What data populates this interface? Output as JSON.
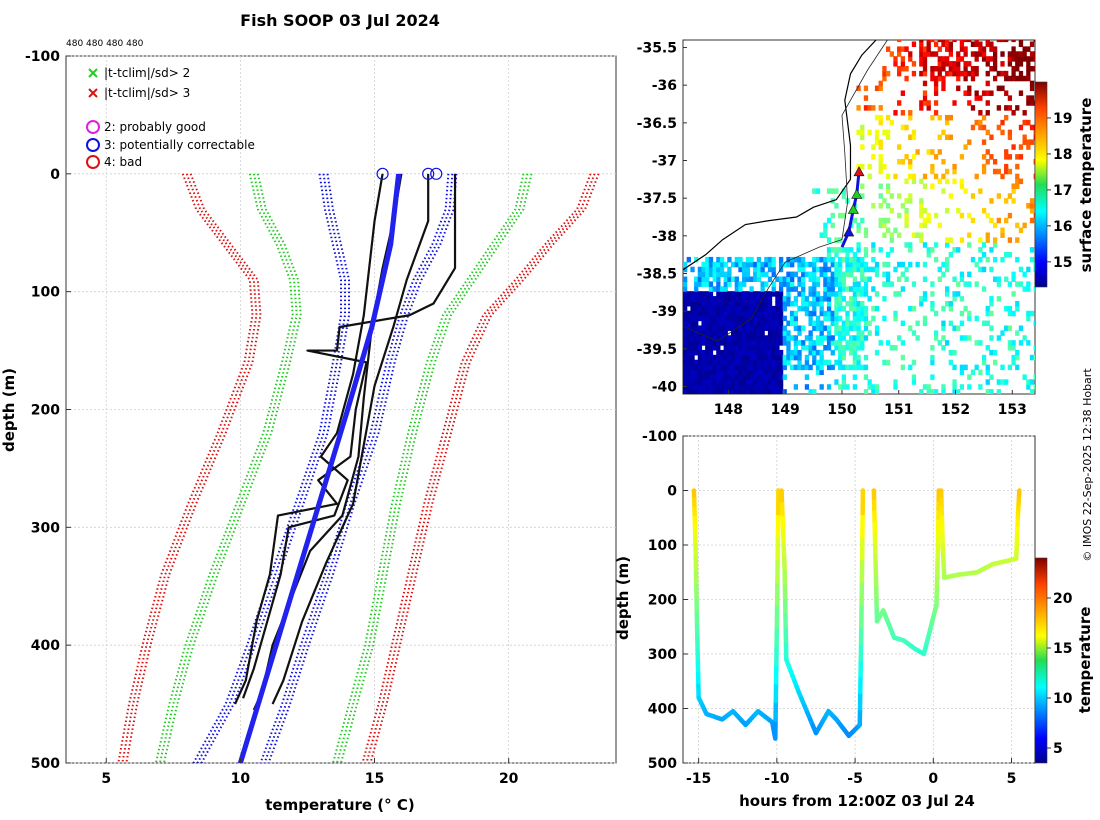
{
  "chart_data": [
    {
      "type": "line",
      "title": "Fish SOOP 03 Jul 2024",
      "annotation": "480 480 480 480",
      "xlabel": "temperature (° C)",
      "ylabel": "depth (m)",
      "xlim": [
        3.5,
        24
      ],
      "ylim": [
        -100,
        500
      ],
      "xticks": [
        "5",
        "10",
        "15",
        "20"
      ],
      "yticks": [
        "-100",
        "0",
        "100",
        "200",
        "300",
        "400",
        "500"
      ],
      "legend": [
        {
          "marker": "x",
          "color": "#22cc22",
          "label": "|t-tclim|/sd> 2"
        },
        {
          "marker": "x",
          "color": "#dd1111",
          "label": "|t-tclim|/sd> 3"
        },
        {
          "marker": "o",
          "color": "#dd22dd",
          "label": "2: probably good"
        },
        {
          "marker": "o",
          "color": "#1111dd",
          "label": "3: potentially correctable"
        },
        {
          "marker": "o",
          "color": "#dd1111",
          "label": "4: bad"
        }
      ],
      "series": [
        {
          "name": "clim -3sd",
          "color": "#dd1111",
          "style": "dotted",
          "points": [
            [
              8.0,
              0
            ],
            [
              8.5,
              30
            ],
            [
              9.5,
              60
            ],
            [
              10.5,
              90
            ],
            [
              10.6,
              120
            ],
            [
              10.3,
              160
            ],
            [
              9.3,
              220
            ],
            [
              8.2,
              280
            ],
            [
              7.2,
              340
            ],
            [
              6.5,
              400
            ],
            [
              6.0,
              450
            ],
            [
              5.6,
              500
            ]
          ]
        },
        {
          "name": "clim -2sd",
          "color": "#22cc22",
          "style": "dotted",
          "points": [
            [
              10.5,
              0
            ],
            [
              10.8,
              30
            ],
            [
              11.5,
              60
            ],
            [
              12.0,
              90
            ],
            [
              12.1,
              120
            ],
            [
              11.7,
              160
            ],
            [
              11.0,
              220
            ],
            [
              10.0,
              280
            ],
            [
              9.0,
              340
            ],
            [
              8.1,
              400
            ],
            [
              7.5,
              450
            ],
            [
              7.0,
              500
            ]
          ]
        },
        {
          "name": "clim -1sd",
          "color": "#1111dd",
          "style": "dotted",
          "points": [
            [
              13.1,
              0
            ],
            [
              13.3,
              30
            ],
            [
              13.6,
              60
            ],
            [
              13.9,
              90
            ],
            [
              13.9,
              120
            ],
            [
              13.6,
              160
            ],
            [
              13.1,
              220
            ],
            [
              12.2,
              280
            ],
            [
              11.3,
              340
            ],
            [
              10.4,
              400
            ],
            [
              9.6,
              450
            ],
            [
              8.4,
              500
            ]
          ]
        },
        {
          "name": "clim +1sd",
          "color": "#1111dd",
          "style": "dotted",
          "points": [
            [
              17.9,
              0
            ],
            [
              17.8,
              30
            ],
            [
              17.3,
              60
            ],
            [
              16.6,
              90
            ],
            [
              16.1,
              120
            ],
            [
              15.6,
              160
            ],
            [
              15.0,
              220
            ],
            [
              14.1,
              280
            ],
            [
              13.3,
              340
            ],
            [
              12.4,
              400
            ],
            [
              11.7,
              450
            ],
            [
              10.9,
              500
            ]
          ]
        },
        {
          "name": "clim +2sd",
          "color": "#22cc22",
          "style": "dotted",
          "points": [
            [
              20.7,
              0
            ],
            [
              20.4,
              30
            ],
            [
              19.5,
              60
            ],
            [
              18.6,
              90
            ],
            [
              17.7,
              120
            ],
            [
              17.1,
              160
            ],
            [
              16.4,
              220
            ],
            [
              15.8,
              280
            ],
            [
              15.3,
              340
            ],
            [
              14.8,
              400
            ],
            [
              14.2,
              450
            ],
            [
              13.6,
              500
            ]
          ]
        },
        {
          "name": "clim +3sd",
          "color": "#dd1111",
          "style": "dotted",
          "points": [
            [
              23.2,
              0
            ],
            [
              22.7,
              30
            ],
            [
              21.5,
              60
            ],
            [
              20.4,
              90
            ],
            [
              19.2,
              120
            ],
            [
              18.4,
              160
            ],
            [
              17.7,
              220
            ],
            [
              17.0,
              280
            ],
            [
              16.4,
              340
            ],
            [
              15.8,
              400
            ],
            [
              15.3,
              450
            ],
            [
              14.7,
              500
            ]
          ]
        },
        {
          "name": "XBT profile 1",
          "color": "#111111",
          "style": "solid",
          "points": [
            [
              17.0,
              0
            ],
            [
              17.0,
              40
            ],
            [
              16.2,
              90
            ],
            [
              15.7,
              130
            ],
            [
              15.0,
              180
            ],
            [
              14.6,
              230
            ],
            [
              14.2,
              280
            ],
            [
              13.2,
              330
            ],
            [
              12.3,
              380
            ],
            [
              11.6,
              430
            ],
            [
              11.2,
              450
            ]
          ]
        },
        {
          "name": "XBT profile 2",
          "color": "#111111",
          "style": "solid",
          "points": [
            [
              18.0,
              0
            ],
            [
              18.0,
              80
            ],
            [
              17.6,
              95
            ],
            [
              17.2,
              110
            ],
            [
              16.3,
              120
            ],
            [
              13.7,
              130
            ],
            [
              13.6,
              150
            ],
            [
              12.5,
              150
            ],
            [
              14.7,
              160
            ],
            [
              14.3,
              200
            ],
            [
              14.1,
              240
            ],
            [
              12.9,
              260
            ],
            [
              13.6,
              280
            ],
            [
              11.4,
              290
            ],
            [
              11.1,
              340
            ],
            [
              10.6,
              380
            ],
            [
              10.2,
              430
            ],
            [
              9.8,
              450
            ]
          ]
        },
        {
          "name": "XBT profile 3",
          "color": "#111111",
          "style": "solid",
          "points": [
            [
              15.3,
              0
            ],
            [
              15.0,
              40
            ],
            [
              14.8,
              80
            ],
            [
              14.6,
              120
            ],
            [
              14.2,
              170
            ],
            [
              13.6,
              220
            ],
            [
              13.0,
              240
            ],
            [
              14.0,
              260
            ],
            [
              13.5,
              290
            ],
            [
              11.8,
              300
            ],
            [
              11.5,
              340
            ],
            [
              11.0,
              380
            ],
            [
              10.5,
              420
            ],
            [
              10.1,
              445
            ]
          ]
        },
        {
          "name": "XBT profile 4",
          "color": "#111111",
          "style": "solid",
          "points": [
            [
              16.0,
              0
            ],
            [
              15.7,
              40
            ],
            [
              15.3,
              80
            ],
            [
              14.9,
              130
            ],
            [
              14.6,
              190
            ],
            [
              14.4,
              240
            ],
            [
              13.8,
              290
            ],
            [
              12.6,
              320
            ],
            [
              11.9,
              360
            ],
            [
              11.2,
              400
            ],
            [
              10.8,
              440
            ],
            [
              10.5,
              455
            ]
          ]
        },
        {
          "name": "blue reference",
          "color": "#2222ee",
          "style": "solid",
          "points": [
            [
              15.9,
              0
            ],
            [
              15.6,
              60
            ],
            [
              14.9,
              130
            ],
            [
              14.0,
              200
            ],
            [
              13.2,
              260
            ],
            [
              12.4,
              320
            ],
            [
              11.6,
              380
            ],
            [
              10.8,
              440
            ],
            [
              10.0,
              500
            ]
          ]
        }
      ],
      "flag_markers": [
        {
          "x": 15.3,
          "y": 0
        },
        {
          "x": 17.0,
          "y": 0
        },
        {
          "x": 17.3,
          "y": 0
        }
      ]
    },
    {
      "type": "heatmap",
      "xlabel": "",
      "ylabel": "",
      "xlim": [
        147.2,
        153.4
      ],
      "ylim": [
        -40.1,
        -35.4
      ],
      "xticks": [
        "148",
        "149",
        "150",
        "151",
        "152",
        "153"
      ],
      "yticks": [
        "-35.5",
        "-36",
        "-36.5",
        "-37",
        "-37.5",
        "-38",
        "-38.5",
        "-39",
        "-39.5",
        "-40"
      ],
      "colorbar_label": "surface temperature",
      "colorbar_ticks": [
        "15",
        "16",
        "17",
        "18",
        "19"
      ],
      "colorbar_range": [
        14.3,
        20.0
      ],
      "track": [
        [
          150.3,
          -37.15
        ],
        [
          150.26,
          -37.45
        ],
        [
          150.2,
          -37.65
        ],
        [
          150.12,
          -37.95
        ],
        [
          150.0,
          -38.15
        ]
      ],
      "track_markers": [
        {
          "lon": 150.3,
          "lat": -37.15,
          "color": "#dd1111"
        },
        {
          "lon": 150.26,
          "lat": -37.45,
          "color": "#22cc22"
        },
        {
          "lon": 150.2,
          "lat": -37.65,
          "color": "#22cc22"
        },
        {
          "lon": 150.12,
          "lat": -37.95,
          "color": "#1111dd"
        }
      ]
    },
    {
      "type": "scatter",
      "xlabel": "hours from 12:00Z 03 Jul 24",
      "ylabel": "depth (m)",
      "xlim": [
        -16,
        6.5
      ],
      "ylim": [
        -100,
        500
      ],
      "xticks": [
        "-15",
        "-10",
        "-5",
        "0",
        "5"
      ],
      "yticks": [
        "-100",
        "0",
        "100",
        "200",
        "300",
        "400",
        "500"
      ],
      "colorbar_label": "temperature",
      "colorbar_ticks": [
        "5",
        "10",
        "15",
        "20"
      ],
      "colorbar_range": [
        3.5,
        24
      ],
      "drops": [
        {
          "points": [
            [
              -15.3,
              0
            ],
            [
              -15.2,
              100
            ],
            [
              -15.1,
              250
            ],
            [
              -15.0,
              380
            ],
            [
              -14.5,
              410
            ],
            [
              -13.5,
              420
            ],
            [
              -12.8,
              405
            ],
            [
              -12.0,
              430
            ],
            [
              -11.2,
              405
            ],
            [
              -10.3,
              425
            ],
            [
              -10.1,
              455
            ],
            [
              -10.0,
              250
            ],
            [
              -9.9,
              0
            ]
          ]
        },
        {
          "points": [
            [
              -9.7,
              0
            ],
            [
              -9.5,
              150
            ],
            [
              -9.4,
              310
            ],
            [
              -8.6,
              370
            ],
            [
              -7.5,
              445
            ],
            [
              -6.7,
              405
            ],
            [
              -6.2,
              420
            ],
            [
              -5.4,
              450
            ],
            [
              -4.7,
              430
            ],
            [
              -4.6,
              250
            ],
            [
              -4.5,
              0
            ]
          ]
        },
        {
          "points": [
            [
              -3.8,
              0
            ],
            [
              -3.7,
              120
            ],
            [
              -3.6,
              240
            ],
            [
              -3.2,
              220
            ],
            [
              -2.5,
              270
            ],
            [
              -1.9,
              275
            ],
            [
              -1.2,
              290
            ],
            [
              -0.6,
              300
            ],
            [
              -0.2,
              255
            ],
            [
              0.2,
              210
            ],
            [
              0.3,
              100
            ],
            [
              0.35,
              0
            ]
          ]
        },
        {
          "points": [
            [
              0.5,
              0
            ],
            [
              0.6,
              100
            ],
            [
              0.7,
              160
            ],
            [
              1.5,
              155
            ],
            [
              2.8,
              150
            ],
            [
              3.8,
              135
            ],
            [
              4.6,
              130
            ],
            [
              5.3,
              125
            ],
            [
              5.4,
              50
            ],
            [
              5.5,
              0
            ]
          ]
        }
      ]
    }
  ],
  "credit": "© IMOS 22-Sep-2025 12:38 Hobart"
}
